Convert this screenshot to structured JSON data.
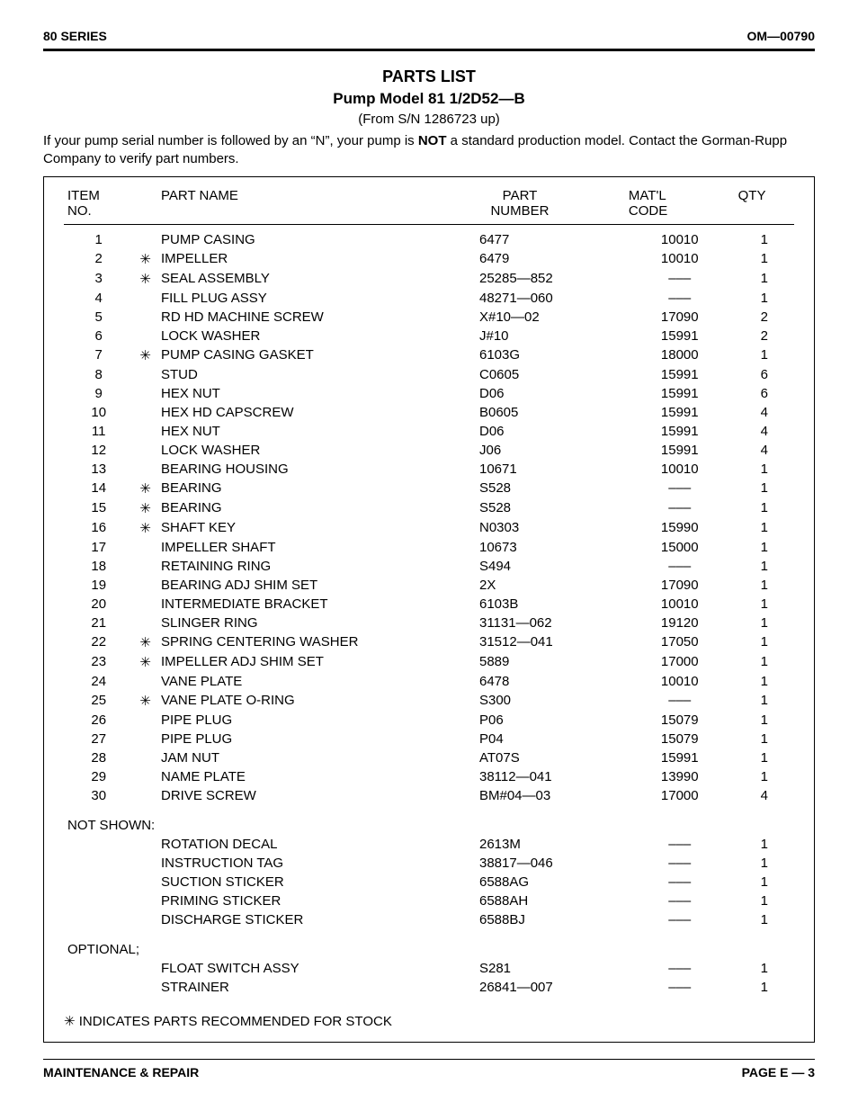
{
  "header": {
    "left": "80 SERIES",
    "right": "OM—00790"
  },
  "titles": {
    "main": "PARTS LIST",
    "model": "Pump Model 81 1/2D52—B",
    "sn": "(From S/N 1286723 up)"
  },
  "note": "If your pump serial number is followed by an “N”, your pump is NOT a standard production model. Contact the Gorman-Rupp Company to verify part numbers.",
  "note_parts": {
    "pre": "If your pump serial number is followed by an “N”, your pump is ",
    "bold": "NOT",
    "post": " a standard production model. Contact the Gorman-Rupp Company to verify part numbers."
  },
  "columns": {
    "item1": "ITEM",
    "item2": "NO.",
    "name": "PART NAME",
    "part1": "PART",
    "part2": "NUMBER",
    "matl1": "MAT'L",
    "matl2": "CODE",
    "qty": "QTY"
  },
  "star_glyph": "✳",
  "dash": "–––",
  "rows": [
    {
      "item": "1",
      "star": "",
      "name": "PUMP CASING",
      "part": "6477",
      "matl": "10010",
      "qty": "1"
    },
    {
      "item": "2",
      "star": "*",
      "name": "IMPELLER",
      "part": "6479",
      "matl": "10010",
      "qty": "1"
    },
    {
      "item": "3",
      "star": "*",
      "name": "SEAL ASSEMBLY",
      "part": "25285—852",
      "matl": "---",
      "qty": "1"
    },
    {
      "item": "4",
      "star": "",
      "name": "FILL PLUG ASSY",
      "part": "48271—060",
      "matl": "---",
      "qty": "1"
    },
    {
      "item": "5",
      "star": "",
      "name": "RD HD MACHINE SCREW",
      "part": "X#10—02",
      "matl": "17090",
      "qty": "2"
    },
    {
      "item": "6",
      "star": "",
      "name": "LOCK WASHER",
      "part": "J#10",
      "matl": "15991",
      "qty": "2"
    },
    {
      "item": "7",
      "star": "*",
      "name": "PUMP CASING GASKET",
      "part": "6103G",
      "matl": "18000",
      "qty": "1"
    },
    {
      "item": "8",
      "star": "",
      "name": "STUD",
      "part": "C0605",
      "matl": "15991",
      "qty": "6"
    },
    {
      "item": "9",
      "star": "",
      "name": "HEX NUT",
      "part": "D06",
      "matl": "15991",
      "qty": "6"
    },
    {
      "item": "10",
      "star": "",
      "name": "HEX HD CAPSCREW",
      "part": "B0605",
      "matl": "15991",
      "qty": "4"
    },
    {
      "item": "11",
      "star": "",
      "name": "HEX NUT",
      "part": "D06",
      "matl": "15991",
      "qty": "4"
    },
    {
      "item": "12",
      "star": "",
      "name": "LOCK WASHER",
      "part": "J06",
      "matl": "15991",
      "qty": "4"
    },
    {
      "item": "13",
      "star": "",
      "name": "BEARING HOUSING",
      "part": "10671",
      "matl": "10010",
      "qty": "1"
    },
    {
      "item": "14",
      "star": "*",
      "name": "BEARING",
      "part": "S528",
      "matl": "---",
      "qty": "1"
    },
    {
      "item": "15",
      "star": "*",
      "name": "BEARING",
      "part": "S528",
      "matl": "---",
      "qty": "1"
    },
    {
      "item": "16",
      "star": "*",
      "name": "SHAFT KEY",
      "part": "N0303",
      "matl": "15990",
      "qty": "1"
    },
    {
      "item": "17",
      "star": "",
      "name": "IMPELLER SHAFT",
      "part": "10673",
      "matl": "15000",
      "qty": "1"
    },
    {
      "item": "18",
      "star": "",
      "name": "RETAINING RING",
      "part": "S494",
      "matl": "---",
      "qty": "1"
    },
    {
      "item": "19",
      "star": "",
      "name": "BEARING ADJ SHIM SET",
      "part": "2X",
      "matl": "17090",
      "qty": "1"
    },
    {
      "item": "20",
      "star": "",
      "name": "INTERMEDIATE BRACKET",
      "part": "6103B",
      "matl": "10010",
      "qty": "1"
    },
    {
      "item": "21",
      "star": "",
      "name": "SLINGER RING",
      "part": "31131—062",
      "matl": "19120",
      "qty": "1"
    },
    {
      "item": "22",
      "star": "*",
      "name": "SPRING CENTERING WASHER",
      "part": "31512—041",
      "matl": "17050",
      "qty": "1"
    },
    {
      "item": "23",
      "star": "*",
      "name": "IMPELLER ADJ SHIM SET",
      "part": "5889",
      "matl": "17000",
      "qty": "1"
    },
    {
      "item": "24",
      "star": "",
      "name": "VANE PLATE",
      "part": "6478",
      "matl": "10010",
      "qty": "1"
    },
    {
      "item": "25",
      "star": "*",
      "name": "VANE PLATE O-RING",
      "part": "S300",
      "matl": "---",
      "qty": "1"
    },
    {
      "item": "26",
      "star": "",
      "name": "PIPE PLUG",
      "part": "P06",
      "matl": "15079",
      "qty": "1"
    },
    {
      "item": "27",
      "star": "",
      "name": "PIPE PLUG",
      "part": "P04",
      "matl": "15079",
      "qty": "1"
    },
    {
      "item": "28",
      "star": "",
      "name": "JAM NUT",
      "part": "AT07S",
      "matl": "15991",
      "qty": "1"
    },
    {
      "item": "29",
      "star": "",
      "name": "NAME PLATE",
      "part": "38112—041",
      "matl": "13990",
      "qty": "1"
    },
    {
      "item": "30",
      "star": "",
      "name": "DRIVE SCREW",
      "part": "BM#04—03",
      "matl": "17000",
      "qty": "4"
    }
  ],
  "sections": [
    {
      "label": "NOT SHOWN:",
      "rows": [
        {
          "item": "",
          "star": "",
          "name": "ROTATION DECAL",
          "part": "2613M",
          "matl": "---",
          "qty": "1"
        },
        {
          "item": "",
          "star": "",
          "name": "INSTRUCTION TAG",
          "part": "38817—046",
          "matl": "---",
          "qty": "1"
        },
        {
          "item": "",
          "star": "",
          "name": "SUCTION STICKER",
          "part": "6588AG",
          "matl": "---",
          "qty": "1"
        },
        {
          "item": "",
          "star": "",
          "name": "PRIMING STICKER",
          "part": "6588AH",
          "matl": "---",
          "qty": "1"
        },
        {
          "item": "",
          "star": "",
          "name": "DISCHARGE STICKER",
          "part": "6588BJ",
          "matl": "---",
          "qty": "1"
        }
      ]
    },
    {
      "label": "OPTIONAL;",
      "rows": [
        {
          "item": "",
          "star": "",
          "name": "FLOAT SWITCH ASSY",
          "part": "S281",
          "matl": "---",
          "qty": "1"
        },
        {
          "item": "",
          "star": "",
          "name": "STRAINER",
          "part": "26841—007",
          "matl": "---",
          "qty": "1"
        }
      ]
    }
  ],
  "stock_note": "✳ INDICATES PARTS RECOMMENDED FOR STOCK",
  "footer": {
    "left": "MAINTENANCE & REPAIR",
    "right": "PAGE E — 3"
  }
}
